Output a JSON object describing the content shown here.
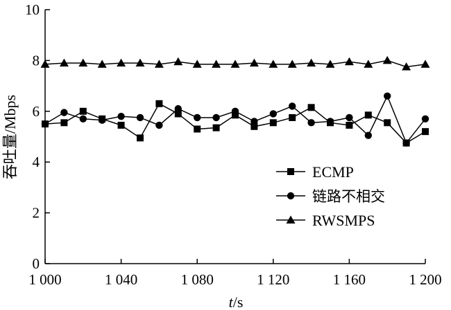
{
  "chart_data": {
    "type": "line",
    "title": "",
    "xlabel_italic": "t",
    "xlabel_unit": "/s",
    "ylabel": "吞吐量/Mbps",
    "xlim": [
      1000,
      1200
    ],
    "ylim": [
      0,
      10
    ],
    "xticks": [
      1000,
      1040,
      1080,
      1120,
      1160,
      1200
    ],
    "xtick_labels": [
      "1 000",
      "1 040",
      "1 080",
      "1 120",
      "1 160",
      "1 200"
    ],
    "yticks": [
      0,
      2,
      4,
      6,
      8,
      10
    ],
    "ytick_labels": [
      "0",
      "2",
      "4",
      "6",
      "8",
      "10"
    ],
    "grid": false,
    "legend_position": "bottom-right",
    "x": [
      1000,
      1010,
      1020,
      1030,
      1040,
      1050,
      1060,
      1070,
      1080,
      1090,
      1100,
      1110,
      1120,
      1130,
      1140,
      1150,
      1160,
      1170,
      1180,
      1190,
      1200
    ],
    "series": [
      {
        "name": "ECMP",
        "marker": "square",
        "values": [
          5.5,
          5.55,
          6.0,
          5.7,
          5.45,
          4.95,
          6.3,
          5.9,
          5.3,
          5.35,
          5.85,
          5.4,
          5.55,
          5.75,
          6.15,
          5.55,
          5.45,
          5.85,
          5.55,
          4.75,
          5.2
        ]
      },
      {
        "name": "链路不相交",
        "marker": "circle",
        "values": [
          5.5,
          5.95,
          5.7,
          5.65,
          5.8,
          5.75,
          5.45,
          6.1,
          5.75,
          5.75,
          6.0,
          5.6,
          5.9,
          6.2,
          5.55,
          5.6,
          5.75,
          5.05,
          6.6,
          4.75,
          5.7
        ]
      },
      {
        "name": "RWSMPS",
        "marker": "triangle",
        "values": [
          7.85,
          7.9,
          7.9,
          7.85,
          7.9,
          7.9,
          7.85,
          7.95,
          7.85,
          7.85,
          7.85,
          7.9,
          7.85,
          7.85,
          7.9,
          7.85,
          7.95,
          7.85,
          8.0,
          7.75,
          7.85
        ]
      }
    ]
  }
}
